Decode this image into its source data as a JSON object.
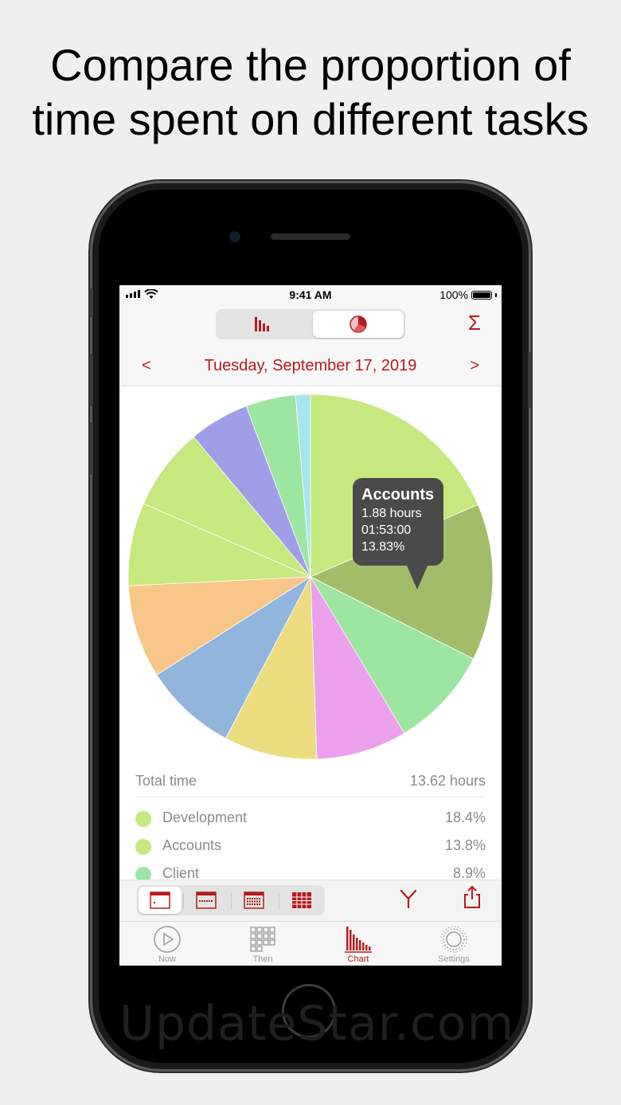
{
  "headline": {
    "line1": "Compare the proportion of",
    "line2": "time spent on different tasks"
  },
  "watermark": "UpdateStar.com",
  "status_bar": {
    "time": "9:41 AM",
    "battery": "100%"
  },
  "view_toggle": {
    "options": [
      "bar-chart-icon",
      "pie-chart-icon"
    ],
    "selected": "pie-chart-icon"
  },
  "sum_label": "Σ",
  "date_nav": {
    "prev": "<",
    "date": "Tuesday, September 17, 2019",
    "next": ">"
  },
  "tooltip": {
    "title": "Accounts",
    "hours": "1.88 hours",
    "duration": "01:53:00",
    "percent": "13.83%"
  },
  "chart_data": {
    "type": "pie",
    "slices": [
      {
        "value": 18.4,
        "color": "#c5e87f"
      },
      {
        "value": 13.8,
        "color": "#a2bd69"
      },
      {
        "value": 8.9,
        "color": "#9de6a2"
      },
      {
        "value": 8.0,
        "color": "#eaa0ea"
      },
      {
        "value": 8.2,
        "color": "#ebdc80"
      },
      {
        "value": 8.2,
        "color": "#91b5dd"
      },
      {
        "value": 8.2,
        "color": "#f8c689"
      },
      {
        "value": 7.3,
        "color": "#c5e87f"
      },
      {
        "value": 7.3,
        "color": "#c5e87f"
      },
      {
        "value": 5.3,
        "color": "#a19ee8"
      },
      {
        "value": 4.4,
        "color": "#9de6a2"
      },
      {
        "value": 1.3,
        "color": "#a6e5ec"
      }
    ]
  },
  "summary": {
    "total_label": "Total time",
    "total_value": "13.62 hours"
  },
  "legend": [
    {
      "name": "Development",
      "percent": "18.4%",
      "color": "#c5e87f"
    },
    {
      "name": "Accounts",
      "percent": "13.8%",
      "color": "#c5e87f"
    },
    {
      "name": "Client",
      "percent": "8.9%",
      "color": "#9de6a2"
    }
  ],
  "toolbar": {
    "ranges": [
      "day-range-icon",
      "week-range-icon",
      "month-range-icon",
      "year-range-icon"
    ],
    "selected": "day-range-icon"
  },
  "tabs": [
    {
      "label": "Now",
      "icon": "play-icon"
    },
    {
      "label": "Then",
      "icon": "grid-icon"
    },
    {
      "label": "Chart",
      "icon": "chart-icon"
    },
    {
      "label": "Settings",
      "icon": "gear-icon"
    }
  ],
  "active_tab": "Chart",
  "accent_color": "#b51c1c"
}
